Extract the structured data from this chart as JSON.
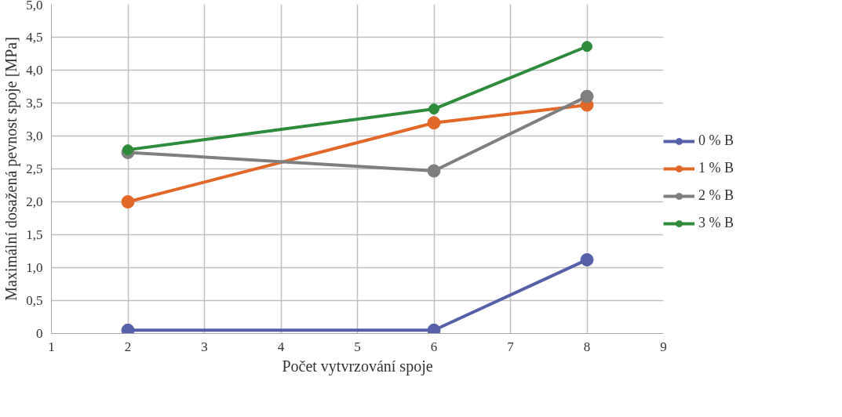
{
  "chart_data": {
    "type": "line",
    "xlabel": "Počet vytvrzování spoje",
    "ylabel": "Maximální dosažená pevnost spoje [MPa]",
    "x": [
      2,
      6,
      8
    ],
    "series": [
      {
        "name": "0 % B",
        "color": "#5560a8",
        "values": [
          0.05,
          0.05,
          1.12
        ]
      },
      {
        "name": "1 % B",
        "color": "#e2682a",
        "values": [
          2.0,
          3.2,
          3.47
        ]
      },
      {
        "name": "2 % B",
        "color": "#7f7f7f",
        "values": [
          2.75,
          2.47,
          3.6
        ]
      },
      {
        "name": "3 % B",
        "color": "#2e8b3c",
        "values": [
          2.79,
          3.41,
          4.36
        ]
      }
    ],
    "xlim": [
      1,
      9
    ],
    "xticks": [
      1,
      2,
      3,
      4,
      5,
      6,
      7,
      8,
      9
    ],
    "ylim": [
      0,
      5
    ],
    "yticks": [
      0,
      {
        "value": 0.5,
        "label": "0,5"
      },
      {
        "value": 1,
        "label": "1,0"
      },
      {
        "value": 1.5,
        "label": "1,5"
      },
      {
        "value": 2,
        "label": "2,0"
      },
      {
        "value": 2.5,
        "label": "2,5"
      },
      {
        "value": 3,
        "label": "3,0"
      },
      {
        "value": 3.5,
        "label": "3,5"
      },
      {
        "value": 4,
        "label": "4,0"
      },
      {
        "value": 4.5,
        "label": "4,5"
      },
      {
        "value": 5,
        "label": "5,0"
      }
    ],
    "grid": true,
    "legend": "right",
    "marker": "circle",
    "line_style": "solid"
  }
}
